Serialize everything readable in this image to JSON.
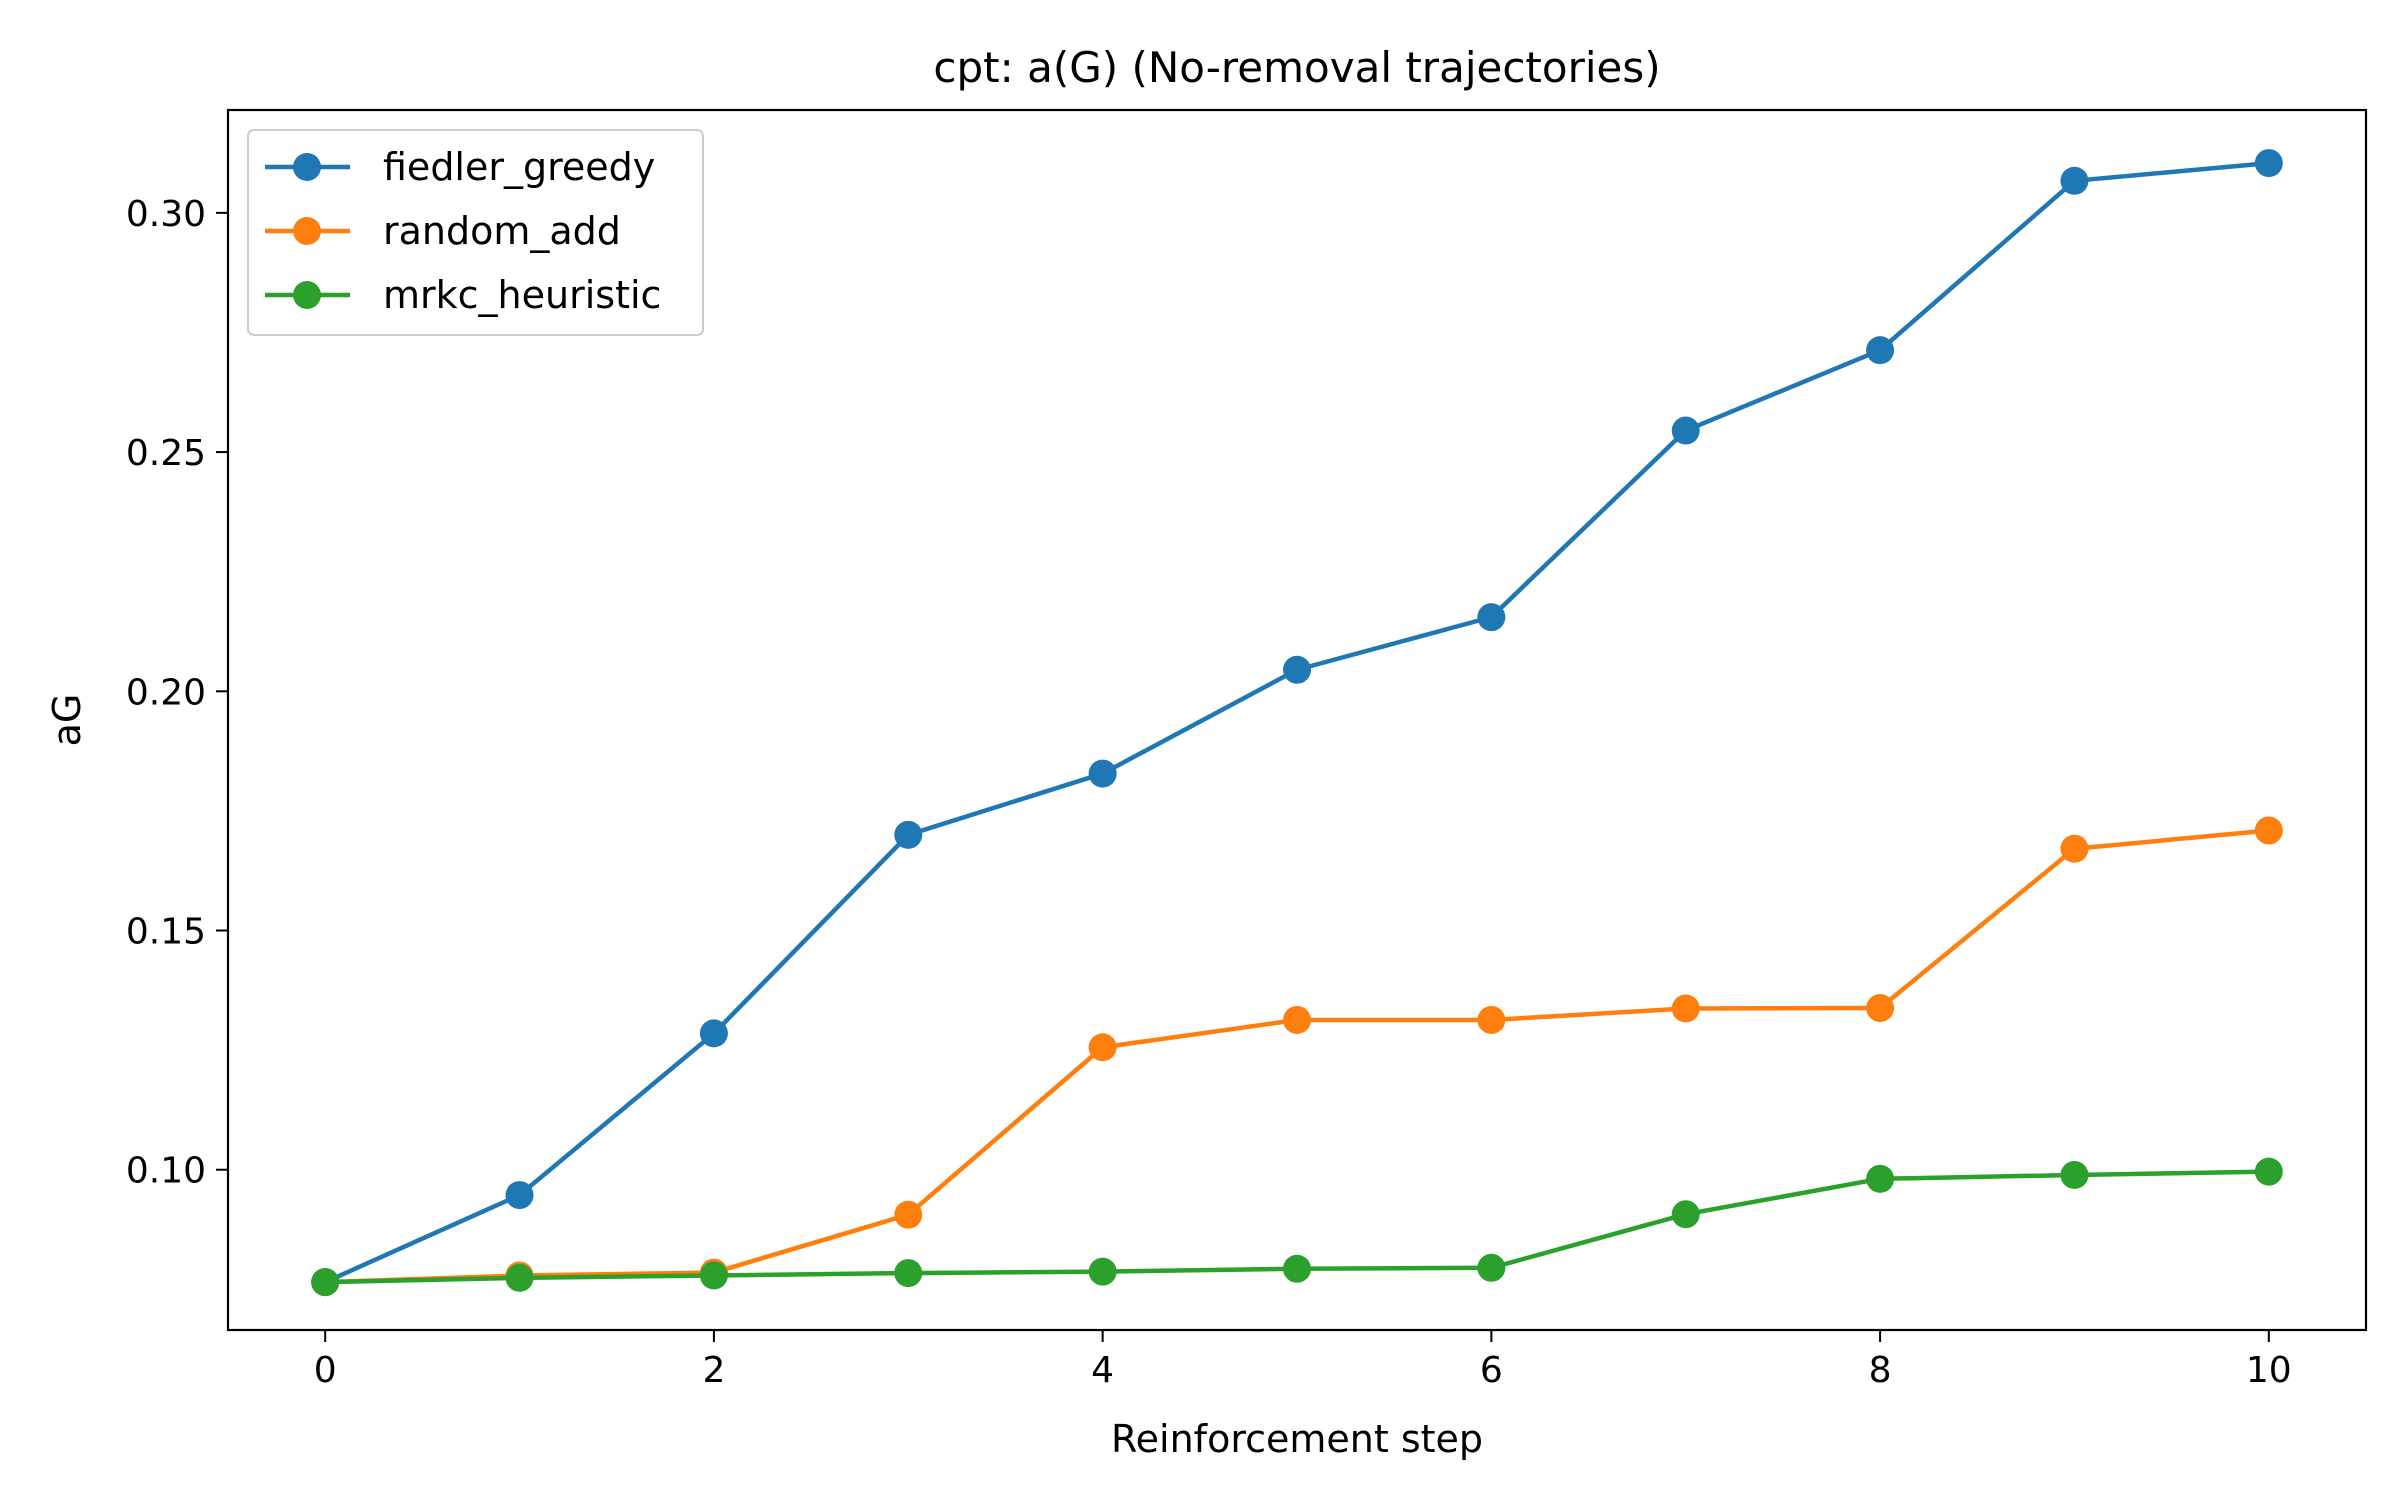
{
  "chart_data": {
    "type": "line",
    "title": "cpt: a(G) (No-removal trajectories)",
    "xlabel": "Reinforcement step",
    "ylabel": "aG",
    "x": [
      0,
      1,
      2,
      3,
      4,
      5,
      6,
      7,
      8,
      9,
      10
    ],
    "xlim": [
      -0.5,
      10.5
    ],
    "ylim": [
      0.0665,
      0.3215
    ],
    "xticks": [
      0,
      2,
      4,
      6,
      8,
      10
    ],
    "xtick_labels": [
      "0",
      "2",
      "4",
      "6",
      "8",
      "10"
    ],
    "yticks": [
      0.1,
      0.15,
      0.2,
      0.25,
      0.3
    ],
    "ytick_labels": [
      "0.10",
      "0.15",
      "0.20",
      "0.25",
      "0.30"
    ],
    "grid": false,
    "legend_position": "top-left",
    "series": [
      {
        "name": "fiedler_greedy",
        "color": "#1f77b4",
        "marker": "circle",
        "values": [
          0.0765,
          0.0947,
          0.1285,
          0.17,
          0.1828,
          0.2045,
          0.2155,
          0.2545,
          0.2713,
          0.3067,
          0.3104
        ]
      },
      {
        "name": "random_add",
        "color": "#ff7f0e",
        "marker": "circle",
        "values": [
          0.0765,
          0.0779,
          0.0785,
          0.0906,
          0.1256,
          0.1313,
          0.1313,
          0.1337,
          0.1338,
          0.1671,
          0.1709
        ]
      },
      {
        "name": "mrkc_heuristic",
        "color": "#2ca02c",
        "marker": "circle",
        "values": [
          0.0765,
          0.0774,
          0.0779,
          0.0784,
          0.0787,
          0.0793,
          0.0795,
          0.0907,
          0.0981,
          0.0989,
          0.0996
        ]
      }
    ]
  }
}
